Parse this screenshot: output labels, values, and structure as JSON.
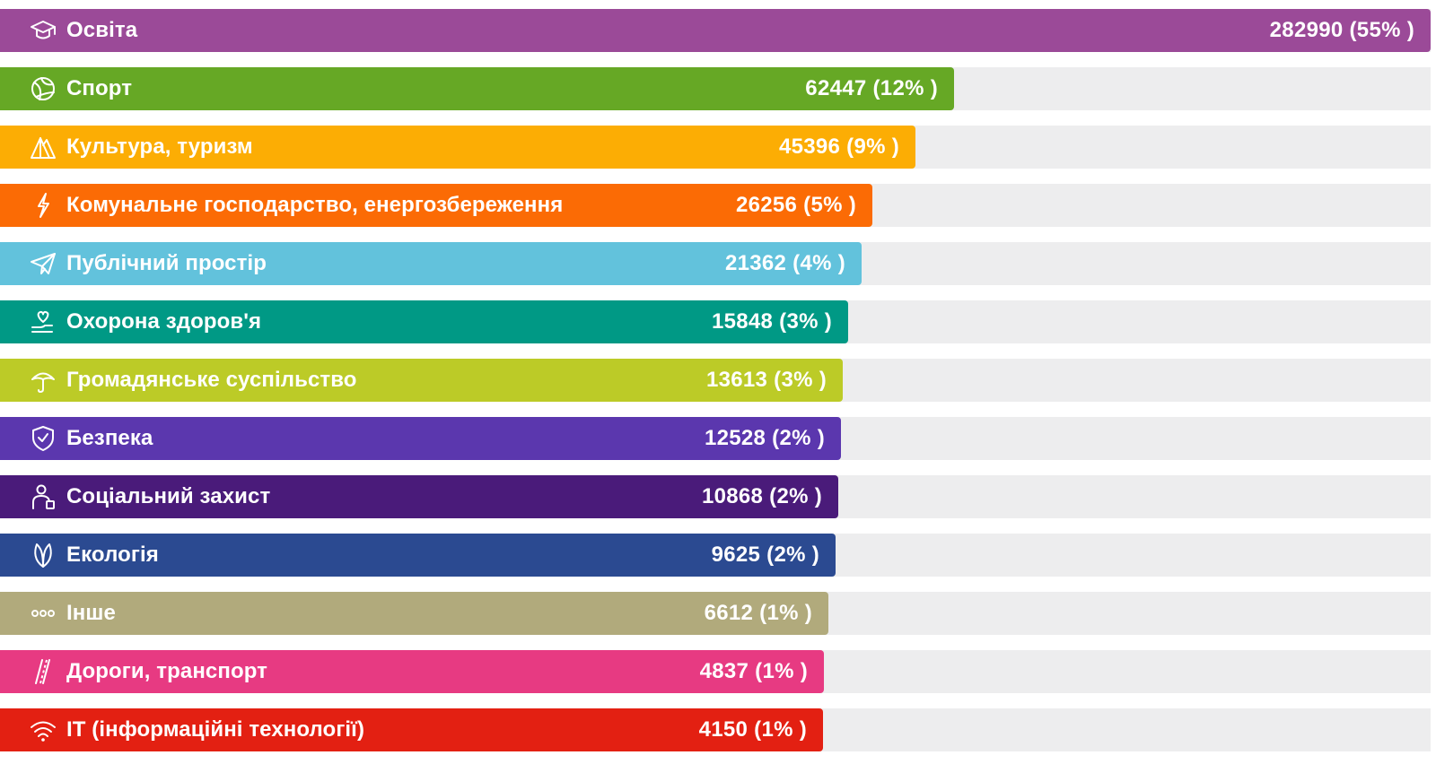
{
  "chart_data": {
    "type": "bar",
    "orientation": "horizontal",
    "categories": [
      "Освіта",
      "Спорт",
      "Культура, туризм",
      "Комунальне господарство, енергозбереження",
      "Публічний простір",
      "Охорона здоров'я",
      "Громадянське суспільство",
      "Безпека",
      "Соціальний захист",
      "Екологія",
      "Інше",
      "Дороги, транспорт",
      "ІТ (інформаційні технології)"
    ],
    "values": [
      282990,
      62447,
      45396,
      26256,
      21362,
      15848,
      13613,
      12528,
      10868,
      9625,
      6612,
      4837,
      4150
    ],
    "value_labels": [
      "282990 (55% )",
      "62447 (12% )",
      "45396 (9% )",
      "26256 (5% )",
      "21362 (4% )",
      "15848 (3% )",
      "13613 (3% )",
      "12528 (2% )",
      "10868 (2% )",
      "9625 (2% )",
      "6612 (1% )",
      "4837 (1% )",
      "4150 (1% )"
    ],
    "bar_fraction": [
      1.0,
      0.667,
      0.64,
      0.61,
      0.602,
      0.593,
      0.589,
      0.588,
      0.586,
      0.584,
      0.579,
      0.576,
      0.575
    ],
    "colors": [
      "#9b4a98",
      "#66a825",
      "#fcad04",
      "#fb6b05",
      "#62c2dc",
      "#009985",
      "#bccb27",
      "#5b37ae",
      "#4a1b7a",
      "#2b4a91",
      "#b1aa7c",
      "#e73a82",
      "#e32012"
    ],
    "icons": [
      "graduation-cap-icon",
      "ball-icon",
      "tent-icon",
      "lightning-icon",
      "paper-plane-icon",
      "hand-heart-icon",
      "umbrella-icon",
      "shield-icon",
      "person-icon",
      "leaf-icon",
      "dots-icon",
      "road-icon",
      "wifi-icon"
    ],
    "track_color": "#ededee",
    "title": "",
    "xlabel": "",
    "ylabel": ""
  }
}
